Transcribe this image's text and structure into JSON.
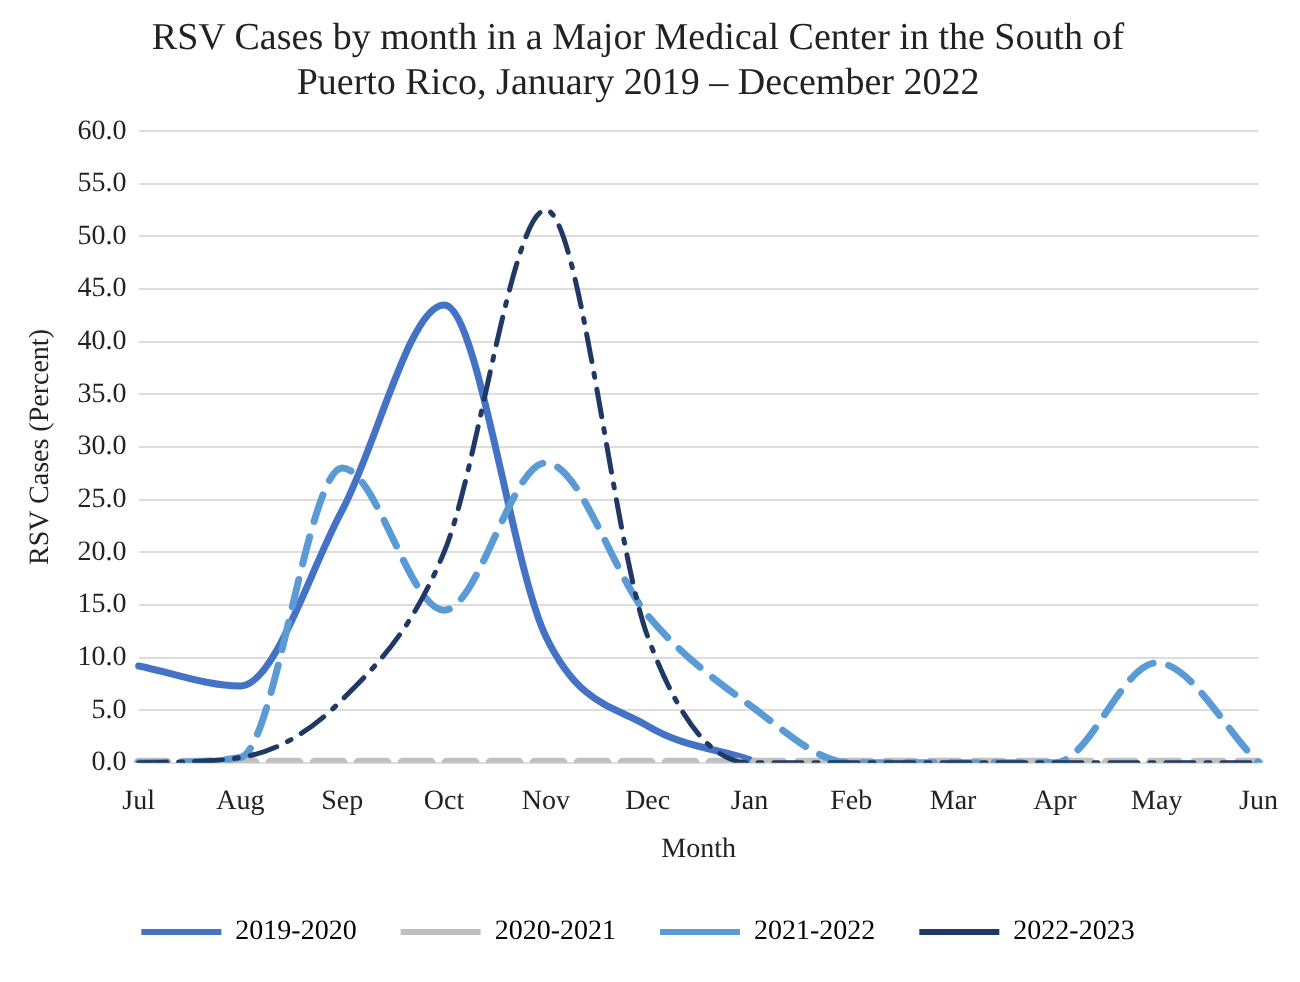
{
  "chart_data": {
    "type": "line",
    "title": "RSV Cases by month in a Major Medical Center in the South of Puerto Rico, January 2019 – December 2022",
    "xlabel": "Month",
    "ylabel": "RSV Cases (Percent)",
    "categories": [
      "Jul",
      "Aug",
      "Sep",
      "Oct",
      "Nov",
      "Dec",
      "Jan",
      "Feb",
      "Mar",
      "Apr",
      "May",
      "Jun"
    ],
    "series": [
      {
        "name": "2019-2020",
        "color": "#4472c4",
        "line_style": "solid",
        "values": [
          9.2,
          7.3,
          24,
          43.5,
          12,
          3.5,
          0.3,
          null,
          null,
          null,
          null,
          null
        ]
      },
      {
        "name": "2020-2021",
        "color": "#bfbfbf",
        "line_style": "dashed",
        "values": [
          0,
          0,
          0,
          0,
          0,
          0,
          0,
          0,
          0,
          0,
          0,
          0
        ]
      },
      {
        "name": "2021-2022",
        "color": "#5b9bd5",
        "line_style": "dashed",
        "values": [
          0,
          0.5,
          28,
          14.5,
          28.5,
          14,
          5.5,
          0,
          0,
          0,
          9.5,
          0
        ]
      },
      {
        "name": "2022-2023",
        "color": "#1f3864",
        "line_style": "dashdot",
        "values": [
          0,
          0.5,
          6,
          20,
          52.5,
          12,
          0,
          0,
          0,
          0,
          0,
          0
        ]
      }
    ],
    "ylim": [
      0,
      60
    ],
    "yticks": [
      {
        "value": 0,
        "label": "0.0"
      },
      {
        "value": 5,
        "label": "5.0"
      },
      {
        "value": 10,
        "label": "10.0"
      },
      {
        "value": 15,
        "label": "15.0"
      },
      {
        "value": 20,
        "label": "20.0"
      },
      {
        "value": 25,
        "label": "25.0"
      },
      {
        "value": 30,
        "label": "30.0"
      },
      {
        "value": 35,
        "label": "35.0"
      },
      {
        "value": 40,
        "label": "40.0"
      },
      {
        "value": 45,
        "label": "45.0"
      },
      {
        "value": 50,
        "label": "50.0"
      },
      {
        "value": 55,
        "label": "55.0"
      },
      {
        "value": 60,
        "label": "60.0"
      }
    ],
    "grid": "y",
    "legend": "bottom",
    "marker": "none"
  }
}
